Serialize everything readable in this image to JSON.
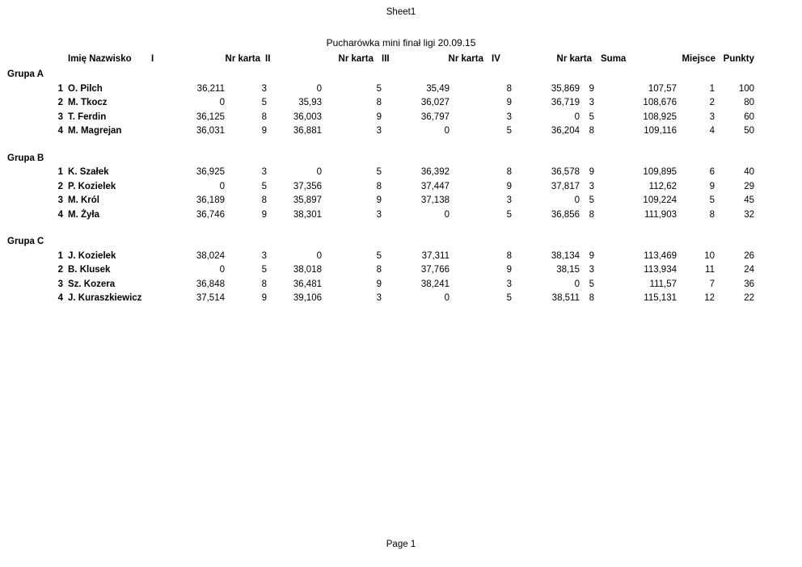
{
  "page": {
    "sheet_label": "Sheet1",
    "title": "Pucharówka mini finał ligi 20.09.15",
    "footer": "Page 1"
  },
  "headers": {
    "name": "Imię Nazwisko",
    "i": "I",
    "karta": "Nr karta",
    "ii": "II",
    "iii": "III",
    "iv": "IV",
    "suma": "Suma",
    "miejsce": "Miejsce",
    "punkty": "Punkty"
  },
  "groups": [
    {
      "label": "Grupa A",
      "rows": [
        [
          "1",
          "O. Pilch",
          "36,211",
          "3",
          "0",
          "5",
          "35,49",
          "8",
          "35,869",
          "9",
          "107,57",
          "1",
          "100"
        ],
        [
          "2",
          "M. Tkocz",
          "0",
          "5",
          "35,93",
          "8",
          "36,027",
          "9",
          "36,719",
          "3",
          "108,676",
          "2",
          "80"
        ],
        [
          "3",
          "T. Ferdin",
          "36,125",
          "8",
          "36,003",
          "9",
          "36,797",
          "3",
          "0",
          "5",
          "108,925",
          "3",
          "60"
        ],
        [
          "4",
          "M. Magrejan",
          "36,031",
          "9",
          "36,881",
          "3",
          "0",
          "5",
          "36,204",
          "8",
          "109,116",
          "4",
          "50"
        ]
      ]
    },
    {
      "label": "Grupa B",
      "rows": [
        [
          "1",
          "K. Szałek",
          "36,925",
          "3",
          "0",
          "5",
          "36,392",
          "8",
          "36,578",
          "9",
          "109,895",
          "6",
          "40"
        ],
        [
          "2",
          "P. Kozielek",
          "0",
          "5",
          "37,356",
          "8",
          "37,447",
          "9",
          "37,817",
          "3",
          "112,62",
          "9",
          "29"
        ],
        [
          "3",
          "M. Król",
          "36,189",
          "8",
          "35,897",
          "9",
          "37,138",
          "3",
          "0",
          "5",
          "109,224",
          "5",
          "45"
        ],
        [
          "4",
          "M. Żyła",
          "36,746",
          "9",
          "38,301",
          "3",
          "0",
          "5",
          "36,856",
          "8",
          "111,903",
          "8",
          "32"
        ]
      ]
    },
    {
      "label": "Grupa C",
      "rows": [
        [
          "1",
          "J. Kozielek",
          "38,024",
          "3",
          "0",
          "5",
          "37,311",
          "8",
          "38,134",
          "9",
          "113,469",
          "10",
          "26"
        ],
        [
          "2",
          "B. Klusek",
          "0",
          "5",
          "38,018",
          "8",
          "37,766",
          "9",
          "38,15",
          "3",
          "113,934",
          "11",
          "24"
        ],
        [
          "3",
          "Sz. Kozera",
          "36,848",
          "8",
          "36,481",
          "9",
          "38,241",
          "3",
          "0",
          "5",
          "111,57",
          "7",
          "36"
        ],
        [
          "4",
          "J. Kuraszkiewicz",
          "37,514",
          "9",
          "39,106",
          "3",
          "0",
          "5",
          "38,511",
          "8",
          "115,131",
          "12",
          "22"
        ]
      ]
    }
  ]
}
